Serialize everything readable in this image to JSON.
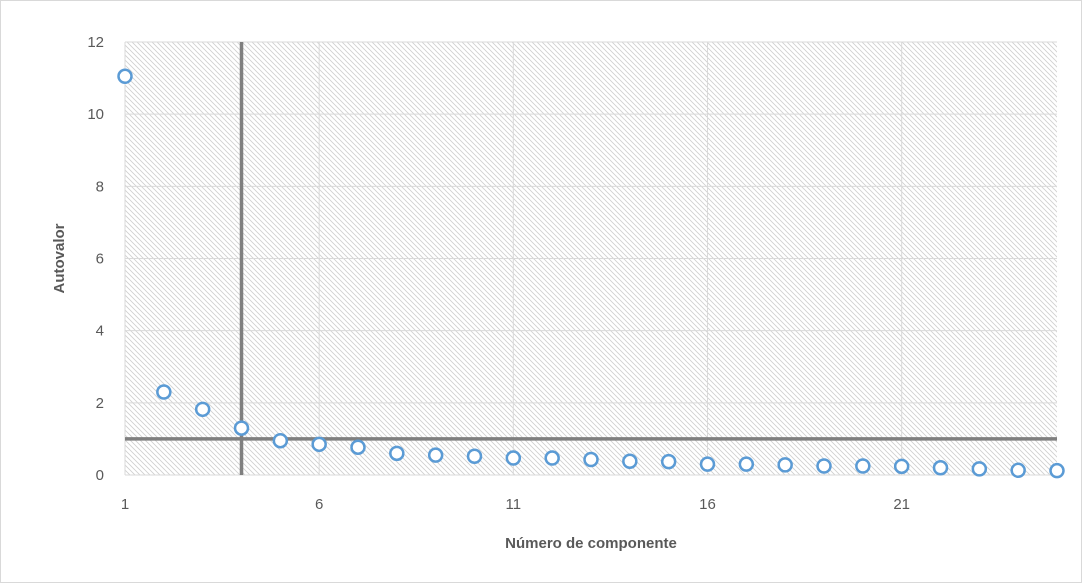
{
  "chart_data": {
    "type": "scatter",
    "title": "",
    "xlabel": "Número de componente",
    "ylabel": "Autovalor",
    "xlim": [
      1,
      25
    ],
    "ylim": [
      0,
      12
    ],
    "x_ticks": [
      1,
      6,
      11,
      16,
      21
    ],
    "y_ticks": [
      0,
      2,
      4,
      6,
      8,
      10,
      12
    ],
    "grid": true,
    "legend": "none",
    "marker_color": "#5b9bd5",
    "reference_line_color": "#7f7f7f",
    "reference_lines": {
      "vertical_x": 4,
      "horizontal_y": 1
    },
    "x": [
      1,
      2,
      3,
      4,
      5,
      6,
      7,
      8,
      9,
      10,
      11,
      12,
      13,
      14,
      15,
      16,
      17,
      18,
      19,
      20,
      21,
      22,
      23,
      24,
      25
    ],
    "y": [
      11.05,
      2.3,
      1.82,
      1.3,
      0.95,
      0.85,
      0.77,
      0.6,
      0.55,
      0.52,
      0.47,
      0.47,
      0.43,
      0.38,
      0.37,
      0.3,
      0.3,
      0.28,
      0.25,
      0.25,
      0.24,
      0.2,
      0.17,
      0.13,
      0.12
    ]
  }
}
